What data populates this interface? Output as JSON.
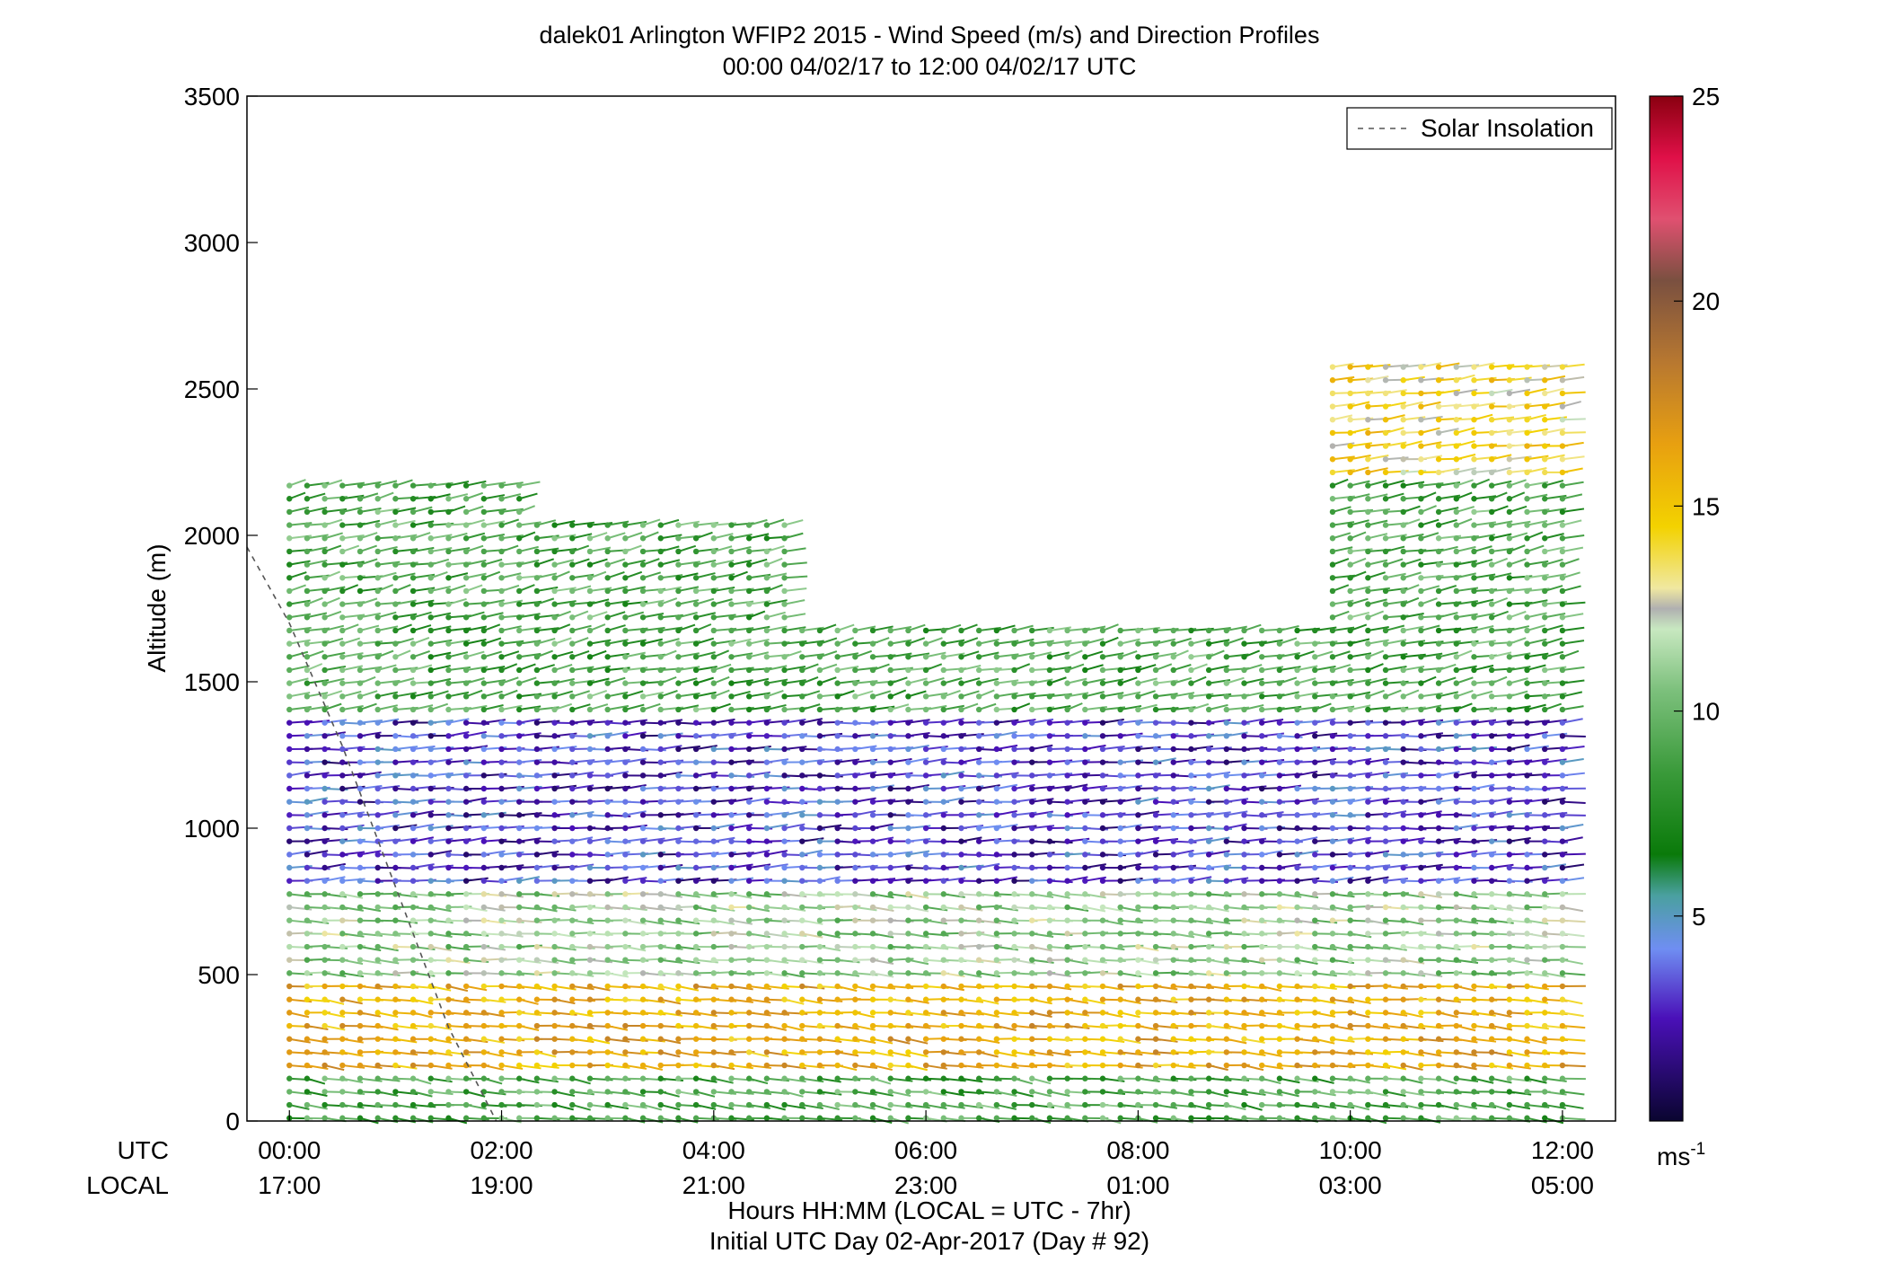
{
  "chart_data": {
    "type": "wind-barb-profile",
    "title_line1": "dalek01 Arlington WFIP2 2015 - Wind Speed (m/s) and Direction Profiles",
    "title_line2": "00:00 04/02/17 to 12:00 04/02/17  UTC",
    "ylabel": "Altitude (m)",
    "ylim": [
      0,
      3500
    ],
    "yticks": [
      "0",
      "500",
      "1000",
      "1500",
      "2000",
      "2500",
      "3000",
      "3500"
    ],
    "ytick_values": [
      0,
      500,
      1000,
      1500,
      2000,
      2500,
      3000,
      3500
    ],
    "xlim_hours": [
      -0.4,
      12.5
    ],
    "xtick_hours": [
      0,
      2,
      4,
      6,
      8,
      10,
      12
    ],
    "xrow_utc_label": "UTC",
    "xrow_local_label": "LOCAL",
    "xticks_utc": [
      "00:00",
      "02:00",
      "04:00",
      "06:00",
      "08:00",
      "10:00",
      "12:00"
    ],
    "xticks_local": [
      "17:00",
      "19:00",
      "21:00",
      "23:00",
      "01:00",
      "03:00",
      "05:00"
    ],
    "xlabel_line1": "Hours HH:MM  (LOCAL = UTC - 7hr)",
    "xlabel_line2": "Initial UTC Day 02-Apr-2017 (Day # 92)",
    "legend": {
      "entry": "Solar Insolation",
      "placement": "top-right",
      "style": "dashed",
      "color": "#555555"
    },
    "solar_insolation": [
      {
        "hour": -0.4,
        "alt": 1960
      },
      {
        "hour": 0.0,
        "alt": 1700
      },
      {
        "hour": 0.5,
        "alt": 1280
      },
      {
        "hour": 1.0,
        "alt": 800
      },
      {
        "hour": 1.5,
        "alt": 320
      },
      {
        "hour": 1.95,
        "alt": 0
      }
    ],
    "colorbar": {
      "min": 0,
      "max": 25,
      "ticks": [
        "5",
        "10",
        "15",
        "20",
        "25"
      ],
      "tick_values": [
        5,
        10,
        15,
        20,
        25
      ],
      "unit": "ms",
      "unit_exp": "-1",
      "stops": [
        {
          "v": 0,
          "c": "#0a0530"
        },
        {
          "v": 2.5,
          "c": "#4a10b8"
        },
        {
          "v": 4.2,
          "c": "#6f8ef2"
        },
        {
          "v": 5.5,
          "c": "#4aa0a0"
        },
        {
          "v": 6.5,
          "c": "#0a7a0a"
        },
        {
          "v": 8.5,
          "c": "#3a9a3a"
        },
        {
          "v": 10.5,
          "c": "#7cc07c"
        },
        {
          "v": 12.0,
          "c": "#c8e8c0"
        },
        {
          "v": 12.5,
          "c": "#b0b0b0"
        },
        {
          "v": 13.0,
          "c": "#f0e8a0"
        },
        {
          "v": 14.5,
          "c": "#f3d200"
        },
        {
          "v": 16.5,
          "c": "#e8a010"
        },
        {
          "v": 18.5,
          "c": "#b87830"
        },
        {
          "v": 20.5,
          "c": "#7a5040"
        },
        {
          "v": 22.0,
          "c": "#e05070"
        },
        {
          "v": 23.5,
          "c": "#e01048"
        },
        {
          "v": 25,
          "c": "#8a0010"
        }
      ]
    },
    "series_note": "",
    "profile_interval_minutes": 10,
    "profile_layers": [
      {
        "alt_from": 0,
        "alt_to": 150,
        "speed": 9,
        "dir_deg": 250
      },
      {
        "alt_from": 150,
        "alt_to": 500,
        "speed": 16,
        "dir_deg": 255
      },
      {
        "alt_from": 500,
        "alt_to": 800,
        "speed": 11,
        "dir_deg": 260
      },
      {
        "alt_from": 800,
        "alt_to": 1400,
        "speed": 3,
        "dir_deg": 280
      },
      {
        "alt_from": 1400,
        "alt_to": 2200,
        "speed": 9,
        "dir_deg": 300
      },
      {
        "alt_from": 2200,
        "alt_to": 2700,
        "speed": 14,
        "dir_deg": 290
      }
    ]
  }
}
